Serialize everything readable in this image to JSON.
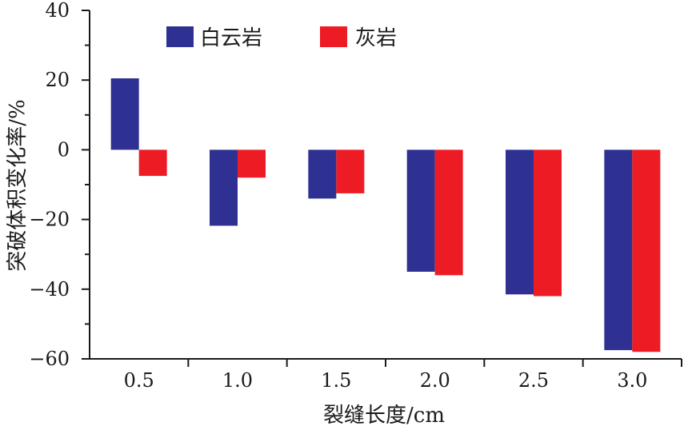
{
  "chart_data": {
    "type": "bar",
    "categories": [
      "0.5",
      "1.0",
      "1.5",
      "2.0",
      "2.5",
      "3.0"
    ],
    "series": [
      {
        "name": "白云岩",
        "color": "#2e3192",
        "values": [
          20.5,
          -21.8,
          -14.0,
          -35.0,
          -41.5,
          -57.5
        ]
      },
      {
        "name": "灰岩",
        "color": "#ed1c24",
        "values": [
          -7.5,
          -8.0,
          -12.5,
          -36.0,
          -42.0,
          -58.0
        ]
      }
    ],
    "xlabel": "裂缝长度/cm",
    "ylabel": "突破体积变化率/%",
    "ylim": [
      -60,
      40
    ],
    "yticks": [
      "40",
      "20",
      "0",
      "−20",
      "−40",
      "−60"
    ],
    "grid": false,
    "legend": "top"
  }
}
